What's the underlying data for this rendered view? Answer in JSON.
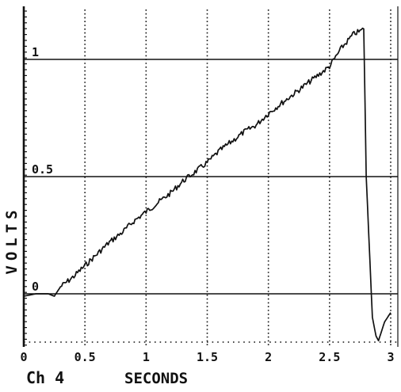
{
  "chart_data": {
    "type": "line",
    "title": "",
    "channel": "Ch 4",
    "xlabel": "SECONDS",
    "ylabel": "VOLTS",
    "x_ticks": [
      "0",
      "0.5",
      "1",
      "1.5",
      "2",
      "2.5",
      "3"
    ],
    "y_ticks": [
      "0",
      "0.5",
      "1"
    ],
    "xlim": [
      0,
      3.05
    ],
    "ylim": [
      -0.2,
      1.2
    ],
    "grid": true,
    "colors": {
      "trace": "#111111",
      "grid": "#111111",
      "background": "#ffffff"
    },
    "series": [
      {
        "name": "",
        "x": [
          0.0,
          0.1,
          0.2,
          0.25,
          0.3,
          0.4,
          0.5,
          0.6,
          0.7,
          0.8,
          0.9,
          1.0,
          1.1,
          1.2,
          1.3,
          1.4,
          1.5,
          1.6,
          1.7,
          1.8,
          1.9,
          2.0,
          2.1,
          2.2,
          2.3,
          2.4,
          2.5,
          2.6,
          2.65,
          2.7,
          2.75,
          2.78,
          2.8,
          2.85,
          2.88,
          2.9,
          2.95,
          3.0
        ],
        "y": [
          -0.01,
          0.0,
          0.0,
          -0.01,
          0.03,
          0.07,
          0.12,
          0.17,
          0.22,
          0.26,
          0.31,
          0.35,
          0.39,
          0.43,
          0.48,
          0.52,
          0.56,
          0.61,
          0.65,
          0.69,
          0.72,
          0.77,
          0.81,
          0.85,
          0.89,
          0.93,
          0.97,
          1.05,
          1.08,
          1.11,
          1.12,
          1.13,
          0.5,
          -0.1,
          -0.18,
          -0.2,
          -0.12,
          -0.08
        ]
      }
    ]
  }
}
